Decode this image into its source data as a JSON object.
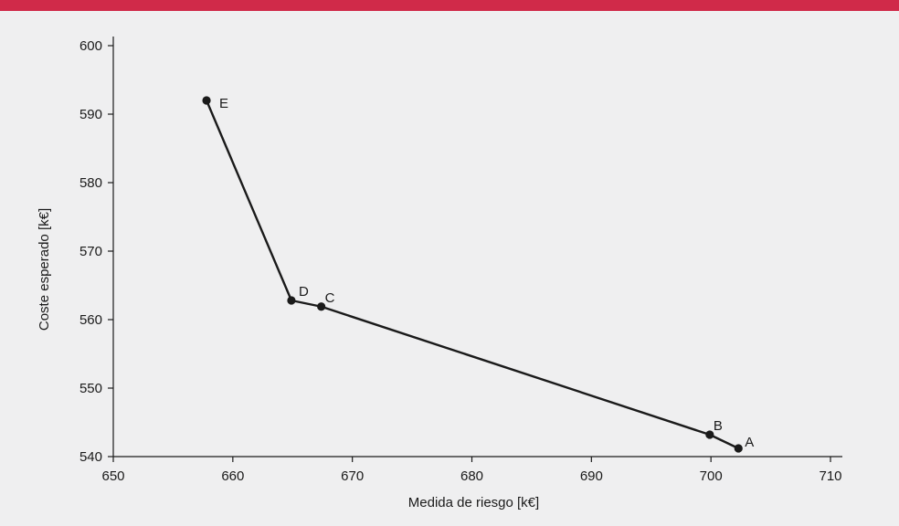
{
  "colors": {
    "top_bar": "#d02a49",
    "background": "#efeff0",
    "line": "#1a1a1a",
    "axis": "#1a1a1a"
  },
  "chart_data": {
    "type": "line",
    "xlabel": "Medida de riesgo [k€]",
    "ylabel": "Coste esperado [k€]",
    "xlim": [
      650,
      710
    ],
    "ylim": [
      540,
      600
    ],
    "x_ticks": [
      650,
      660,
      670,
      680,
      690,
      700,
      710
    ],
    "y_ticks": [
      540,
      550,
      560,
      570,
      580,
      590,
      600
    ],
    "grid": false,
    "points": [
      {
        "label": "E",
        "x": 657.8,
        "y": 592.0
      },
      {
        "label": "D",
        "x": 664.9,
        "y": 562.8
      },
      {
        "label": "C",
        "x": 667.4,
        "y": 561.9
      },
      {
        "label": "B",
        "x": 699.9,
        "y": 543.2
      },
      {
        "label": "A",
        "x": 702.3,
        "y": 541.2
      }
    ]
  }
}
